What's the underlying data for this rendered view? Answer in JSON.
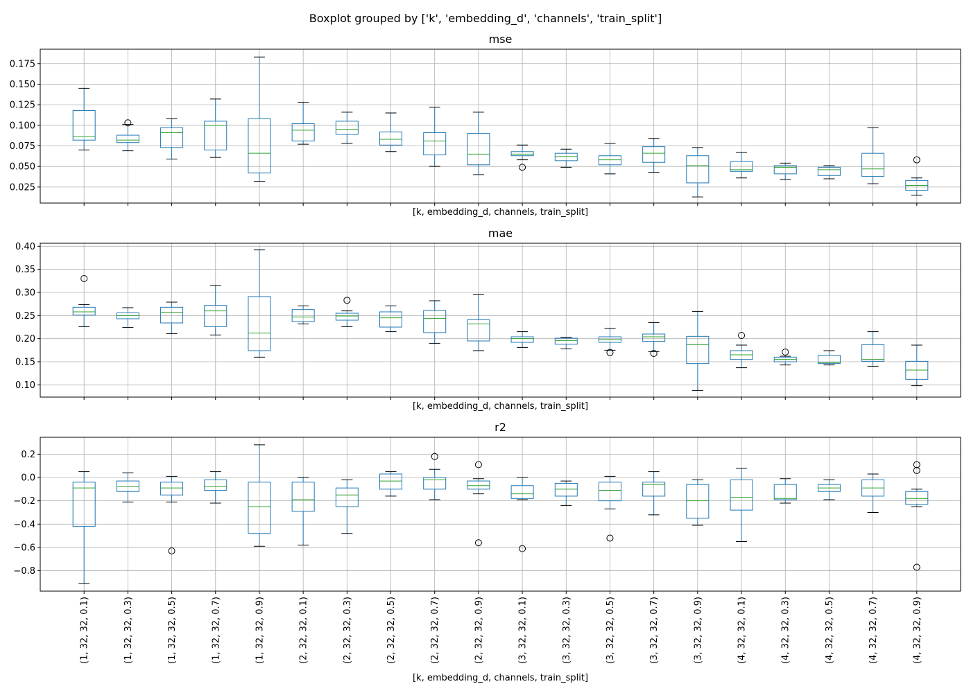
{
  "figure": {
    "suptitle": "Boxplot grouped by ['k', 'embedding_d', 'channels', 'train_split']",
    "colors": {
      "box": "#1f77b4",
      "median": "#2ca02c",
      "grid": "#b0b0b0",
      "whisker": "#000000"
    }
  },
  "chart_data": [
    {
      "type": "box",
      "title": "mse",
      "xlabel": "[k, embedding_d, channels, train_split]",
      "ylabel": "",
      "ylim": [
        0.0055,
        0.1925
      ],
      "yticks": [
        0.025,
        0.05,
        0.075,
        0.1,
        0.125,
        0.15,
        0.175
      ],
      "ytick_labels": [
        "0.025",
        "0.050",
        "0.075",
        "0.100",
        "0.125",
        "0.150",
        "0.175"
      ],
      "grid": true,
      "show_xtick_labels": false,
      "categories": [
        "(1, 32, 32, 0.1)",
        "(1, 32, 32, 0.3)",
        "(1, 32, 32, 0.5)",
        "(1, 32, 32, 0.7)",
        "(1, 32, 32, 0.9)",
        "(2, 32, 32, 0.1)",
        "(2, 32, 32, 0.3)",
        "(2, 32, 32, 0.5)",
        "(2, 32, 32, 0.7)",
        "(2, 32, 32, 0.9)",
        "(3, 32, 32, 0.1)",
        "(3, 32, 32, 0.3)",
        "(3, 32, 32, 0.5)",
        "(3, 32, 32, 0.7)",
        "(3, 32, 32, 0.9)",
        "(4, 32, 32, 0.1)",
        "(4, 32, 32, 0.3)",
        "(4, 32, 32, 0.5)",
        "(4, 32, 32, 0.7)",
        "(4, 32, 32, 0.9)"
      ],
      "boxes": [
        {
          "whislo": 0.07,
          "q1": 0.082,
          "med": 0.086,
          "q3": 0.118,
          "whishi": 0.145,
          "fliers": []
        },
        {
          "whislo": 0.069,
          "q1": 0.079,
          "med": 0.082,
          "q3": 0.088,
          "whishi": 0.101,
          "fliers": [
            0.103
          ]
        },
        {
          "whislo": 0.059,
          "q1": 0.073,
          "med": 0.091,
          "q3": 0.097,
          "whishi": 0.108,
          "fliers": []
        },
        {
          "whislo": 0.061,
          "q1": 0.07,
          "med": 0.1,
          "q3": 0.105,
          "whishi": 0.132,
          "fliers": []
        },
        {
          "whislo": 0.032,
          "q1": 0.042,
          "med": 0.066,
          "q3": 0.108,
          "whishi": 0.183,
          "fliers": []
        },
        {
          "whislo": 0.077,
          "q1": 0.081,
          "med": 0.094,
          "q3": 0.102,
          "whishi": 0.128,
          "fliers": []
        },
        {
          "whislo": 0.078,
          "q1": 0.089,
          "med": 0.095,
          "q3": 0.105,
          "whishi": 0.116,
          "fliers": []
        },
        {
          "whislo": 0.068,
          "q1": 0.076,
          "med": 0.083,
          "q3": 0.092,
          "whishi": 0.115,
          "fliers": []
        },
        {
          "whislo": 0.05,
          "q1": 0.064,
          "med": 0.081,
          "q3": 0.091,
          "whishi": 0.122,
          "fliers": []
        },
        {
          "whislo": 0.04,
          "q1": 0.052,
          "med": 0.065,
          "q3": 0.09,
          "whishi": 0.116,
          "fliers": []
        },
        {
          "whislo": 0.058,
          "q1": 0.063,
          "med": 0.065,
          "q3": 0.068,
          "whishi": 0.076,
          "fliers": [
            0.049
          ]
        },
        {
          "whislo": 0.049,
          "q1": 0.057,
          "med": 0.062,
          "q3": 0.066,
          "whishi": 0.071,
          "fliers": []
        },
        {
          "whislo": 0.041,
          "q1": 0.052,
          "med": 0.058,
          "q3": 0.063,
          "whishi": 0.078,
          "fliers": []
        },
        {
          "whislo": 0.043,
          "q1": 0.055,
          "med": 0.066,
          "q3": 0.074,
          "whishi": 0.084,
          "fliers": []
        },
        {
          "whislo": 0.013,
          "q1": 0.03,
          "med": 0.051,
          "q3": 0.063,
          "whishi": 0.073,
          "fliers": []
        },
        {
          "whislo": 0.036,
          "q1": 0.044,
          "med": 0.046,
          "q3": 0.056,
          "whishi": 0.067,
          "fliers": []
        },
        {
          "whislo": 0.034,
          "q1": 0.041,
          "med": 0.049,
          "q3": 0.051,
          "whishi": 0.054,
          "fliers": []
        },
        {
          "whislo": 0.035,
          "q1": 0.039,
          "med": 0.046,
          "q3": 0.049,
          "whishi": 0.051,
          "fliers": []
        },
        {
          "whislo": 0.029,
          "q1": 0.038,
          "med": 0.047,
          "q3": 0.066,
          "whishi": 0.097,
          "fliers": []
        },
        {
          "whislo": 0.015,
          "q1": 0.021,
          "med": 0.027,
          "q3": 0.033,
          "whishi": 0.036,
          "fliers": [
            0.058
          ]
        }
      ]
    },
    {
      "type": "box",
      "title": "mae",
      "xlabel": "[k, embedding_d, channels, train_split]",
      "ylabel": "",
      "ylim": [
        0.0735,
        0.4065
      ],
      "yticks": [
        0.1,
        0.15,
        0.2,
        0.25,
        0.3,
        0.35,
        0.4
      ],
      "ytick_labels": [
        "0.10",
        "0.15",
        "0.20",
        "0.25",
        "0.30",
        "0.35",
        "0.40"
      ],
      "grid": true,
      "show_xtick_labels": false,
      "categories": [
        "(1, 32, 32, 0.1)",
        "(1, 32, 32, 0.3)",
        "(1, 32, 32, 0.5)",
        "(1, 32, 32, 0.7)",
        "(1, 32, 32, 0.9)",
        "(2, 32, 32, 0.1)",
        "(2, 32, 32, 0.3)",
        "(2, 32, 32, 0.5)",
        "(2, 32, 32, 0.7)",
        "(2, 32, 32, 0.9)",
        "(3, 32, 32, 0.1)",
        "(3, 32, 32, 0.3)",
        "(3, 32, 32, 0.5)",
        "(3, 32, 32, 0.7)",
        "(3, 32, 32, 0.9)",
        "(4, 32, 32, 0.1)",
        "(4, 32, 32, 0.3)",
        "(4, 32, 32, 0.5)",
        "(4, 32, 32, 0.7)",
        "(4, 32, 32, 0.9)"
      ],
      "boxes": [
        {
          "whislo": 0.226,
          "q1": 0.251,
          "med": 0.258,
          "q3": 0.268,
          "whishi": 0.274,
          "fliers": [
            0.33
          ]
        },
        {
          "whislo": 0.224,
          "q1": 0.243,
          "med": 0.25,
          "q3": 0.256,
          "whishi": 0.267,
          "fliers": []
        },
        {
          "whislo": 0.211,
          "q1": 0.234,
          "med": 0.257,
          "q3": 0.268,
          "whishi": 0.279,
          "fliers": []
        },
        {
          "whislo": 0.208,
          "q1": 0.226,
          "med": 0.26,
          "q3": 0.272,
          "whishi": 0.315,
          "fliers": []
        },
        {
          "whislo": 0.16,
          "q1": 0.174,
          "med": 0.212,
          "q3": 0.291,
          "whishi": 0.392,
          "fliers": []
        },
        {
          "whislo": 0.232,
          "q1": 0.237,
          "med": 0.247,
          "q3": 0.263,
          "whishi": 0.271,
          "fliers": []
        },
        {
          "whislo": 0.226,
          "q1": 0.24,
          "med": 0.249,
          "q3": 0.255,
          "whishi": 0.26,
          "fliers": [
            0.283
          ]
        },
        {
          "whislo": 0.215,
          "q1": 0.225,
          "med": 0.245,
          "q3": 0.258,
          "whishi": 0.271,
          "fliers": []
        },
        {
          "whislo": 0.19,
          "q1": 0.213,
          "med": 0.244,
          "q3": 0.261,
          "whishi": 0.282,
          "fliers": []
        },
        {
          "whislo": 0.174,
          "q1": 0.195,
          "med": 0.232,
          "q3": 0.241,
          "whishi": 0.296,
          "fliers": []
        },
        {
          "whislo": 0.181,
          "q1": 0.192,
          "med": 0.2,
          "q3": 0.204,
          "whishi": 0.215,
          "fliers": []
        },
        {
          "whislo": 0.178,
          "q1": 0.188,
          "med": 0.196,
          "q3": 0.201,
          "whishi": 0.203,
          "fliers": []
        },
        {
          "whislo": 0.175,
          "q1": 0.192,
          "med": 0.198,
          "q3": 0.204,
          "whishi": 0.222,
          "fliers": [
            0.17
          ]
        },
        {
          "whislo": 0.172,
          "q1": 0.194,
          "med": 0.204,
          "q3": 0.21,
          "whishi": 0.235,
          "fliers": [
            0.168
          ]
        },
        {
          "whislo": 0.088,
          "q1": 0.146,
          "med": 0.187,
          "q3": 0.205,
          "whishi": 0.259,
          "fliers": []
        },
        {
          "whislo": 0.137,
          "q1": 0.155,
          "med": 0.165,
          "q3": 0.174,
          "whishi": 0.186,
          "fliers": [
            0.207
          ]
        },
        {
          "whislo": 0.143,
          "q1": 0.15,
          "med": 0.155,
          "q3": 0.16,
          "whishi": 0.162,
          "fliers": [
            0.171
          ]
        },
        {
          "whislo": 0.143,
          "q1": 0.146,
          "med": 0.148,
          "q3": 0.164,
          "whishi": 0.174,
          "fliers": []
        },
        {
          "whislo": 0.14,
          "q1": 0.151,
          "med": 0.155,
          "q3": 0.187,
          "whishi": 0.215,
          "fliers": []
        },
        {
          "whislo": 0.098,
          "q1": 0.112,
          "med": 0.132,
          "q3": 0.151,
          "whishi": 0.186,
          "fliers": []
        }
      ]
    },
    {
      "type": "box",
      "title": "r2",
      "xlabel": "[k, embedding_d, channels, train_split]",
      "ylabel": "",
      "ylim": [
        -0.975,
        0.345
      ],
      "yticks": [
        -0.8,
        -0.6,
        -0.4,
        -0.2,
        0.0,
        0.2
      ],
      "ytick_labels": [
        "−0.8",
        "−0.6",
        "−0.4",
        "−0.2",
        "0.0",
        "0.2"
      ],
      "grid": true,
      "show_xtick_labels": true,
      "categories": [
        "(1, 32, 32, 0.1)",
        "(1, 32, 32, 0.3)",
        "(1, 32, 32, 0.5)",
        "(1, 32, 32, 0.7)",
        "(1, 32, 32, 0.9)",
        "(2, 32, 32, 0.1)",
        "(2, 32, 32, 0.3)",
        "(2, 32, 32, 0.5)",
        "(2, 32, 32, 0.7)",
        "(2, 32, 32, 0.9)",
        "(3, 32, 32, 0.1)",
        "(3, 32, 32, 0.3)",
        "(3, 32, 32, 0.5)",
        "(3, 32, 32, 0.7)",
        "(3, 32, 32, 0.9)",
        "(4, 32, 32, 0.1)",
        "(4, 32, 32, 0.3)",
        "(4, 32, 32, 0.5)",
        "(4, 32, 32, 0.7)",
        "(4, 32, 32, 0.9)"
      ],
      "boxes": [
        {
          "whislo": -0.91,
          "q1": -0.42,
          "med": -0.09,
          "q3": -0.04,
          "whishi": 0.05,
          "fliers": []
        },
        {
          "whislo": -0.21,
          "q1": -0.12,
          "med": -0.08,
          "q3": -0.03,
          "whishi": 0.04,
          "fliers": []
        },
        {
          "whislo": -0.21,
          "q1": -0.15,
          "med": -0.09,
          "q3": -0.04,
          "whishi": 0.01,
          "fliers": [
            -0.63
          ]
        },
        {
          "whislo": -0.22,
          "q1": -0.11,
          "med": -0.08,
          "q3": -0.02,
          "whishi": 0.05,
          "fliers": []
        },
        {
          "whislo": -0.59,
          "q1": -0.48,
          "med": -0.25,
          "q3": -0.04,
          "whishi": 0.28,
          "fliers": []
        },
        {
          "whislo": -0.58,
          "q1": -0.29,
          "med": -0.19,
          "q3": -0.04,
          "whishi": 0.0,
          "fliers": []
        },
        {
          "whislo": -0.48,
          "q1": -0.25,
          "med": -0.15,
          "q3": -0.09,
          "whishi": -0.02,
          "fliers": []
        },
        {
          "whislo": -0.16,
          "q1": -0.1,
          "med": -0.03,
          "q3": 0.03,
          "whishi": 0.05,
          "fliers": []
        },
        {
          "whislo": -0.19,
          "q1": -0.1,
          "med": -0.02,
          "q3": 0.0,
          "whishi": 0.07,
          "fliers": [
            0.18
          ]
        },
        {
          "whislo": -0.14,
          "q1": -0.1,
          "med": -0.07,
          "q3": -0.03,
          "whishi": -0.01,
          "fliers": [
            0.11,
            -0.56
          ]
        },
        {
          "whislo": -0.19,
          "q1": -0.18,
          "med": -0.14,
          "q3": -0.07,
          "whishi": 0.0,
          "fliers": [
            -0.61
          ]
        },
        {
          "whislo": -0.24,
          "q1": -0.16,
          "med": -0.1,
          "q3": -0.05,
          "whishi": -0.03,
          "fliers": []
        },
        {
          "whislo": -0.27,
          "q1": -0.2,
          "med": -0.11,
          "q3": -0.04,
          "whishi": 0.01,
          "fliers": [
            -0.52
          ]
        },
        {
          "whislo": -0.32,
          "q1": -0.16,
          "med": -0.06,
          "q3": -0.04,
          "whishi": 0.05,
          "fliers": []
        },
        {
          "whislo": -0.41,
          "q1": -0.35,
          "med": -0.2,
          "q3": -0.06,
          "whishi": -0.02,
          "fliers": []
        },
        {
          "whislo": -0.55,
          "q1": -0.28,
          "med": -0.17,
          "q3": -0.02,
          "whishi": 0.08,
          "fliers": []
        },
        {
          "whislo": -0.22,
          "q1": -0.19,
          "med": -0.18,
          "q3": -0.06,
          "whishi": -0.01,
          "fliers": []
        },
        {
          "whislo": -0.19,
          "q1": -0.12,
          "med": -0.09,
          "q3": -0.06,
          "whishi": -0.02,
          "fliers": []
        },
        {
          "whislo": -0.3,
          "q1": -0.16,
          "med": -0.09,
          "q3": -0.02,
          "whishi": 0.03,
          "fliers": []
        },
        {
          "whislo": -0.25,
          "q1": -0.23,
          "med": -0.18,
          "q3": -0.12,
          "whishi": -0.1,
          "fliers": [
            0.11,
            0.06,
            -0.77
          ]
        }
      ]
    }
  ]
}
